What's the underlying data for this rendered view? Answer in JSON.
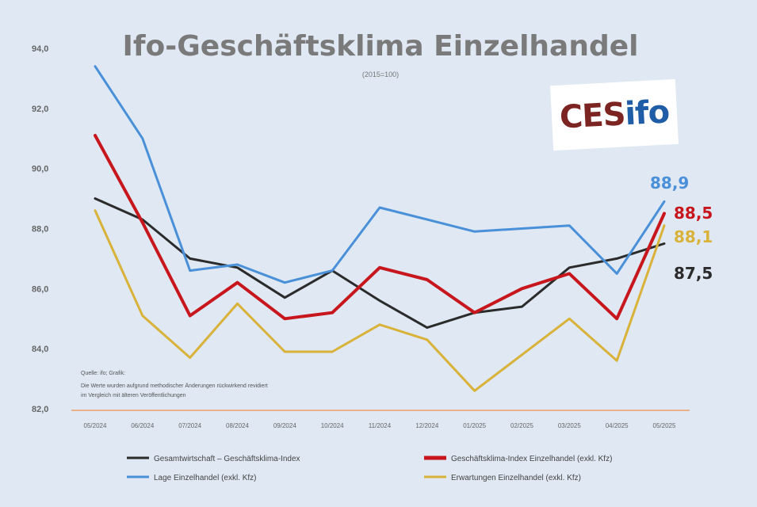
{
  "chart_data": {
    "type": "line",
    "title": "Ifo-Geschäftsklima Einzelhandel",
    "subtitle": "(2015=100)",
    "categories": [
      "05/2024",
      "06/2024",
      "07/2024",
      "08/2024",
      "09/2024",
      "10/2024",
      "11/2024",
      "12/2024",
      "01/2025",
      "02/2025",
      "03/2025",
      "04/2025",
      "05/2025"
    ],
    "yticks": [
      "94,0",
      "92,0",
      "90,0",
      "88,0",
      "86,0",
      "84,0",
      "82,0"
    ],
    "ylim": [
      82,
      94
    ],
    "series": [
      {
        "name": "Gesamtwirtschaft – Geschäftsklima-Index",
        "color": "#2b2b2b",
        "values": [
          89.0,
          88.3,
          87.0,
          86.7,
          85.7,
          86.6,
          85.6,
          84.7,
          85.2,
          85.4,
          86.7,
          87.0,
          87.5
        ],
        "end_label": "87,5"
      },
      {
        "name": "Geschäftsklima-Index Einzelhandel (exkl. Kfz)",
        "color": "#c8161d",
        "values": [
          91.1,
          88.2,
          85.1,
          86.2,
          85.0,
          85.2,
          86.7,
          86.3,
          85.2,
          86.0,
          86.5,
          85.0,
          88.5
        ],
        "end_label": "88,5"
      },
      {
        "name": "Lage Einzelhandel (exkl. Kfz)",
        "color": "#4a90d9",
        "values": [
          93.4,
          91.0,
          86.6,
          86.8,
          86.2,
          86.6,
          88.7,
          88.3,
          87.9,
          88.0,
          88.1,
          86.5,
          88.9
        ],
        "end_label": "88,9"
      },
      {
        "name": "Erwartungen Einzelhandel (exkl. Kfz)",
        "color": "#d9b23a",
        "values": [
          88.6,
          85.1,
          83.7,
          85.5,
          83.9,
          83.9,
          84.8,
          84.3,
          82.6,
          83.8,
          85.0,
          83.6,
          88.1
        ],
        "end_label": "88,1"
      }
    ],
    "legend_position": "bottom",
    "grid": false
  },
  "source": {
    "label": "Quelle: ifo; Grafik:",
    "lines": [
      "Die Werte wurden aufgrund methodischer Änderungen rückwirkend revidiert",
      "im Vergleich mit älteren Veröffentlichungen"
    ]
  },
  "logo": {
    "part1": "CES",
    "part2": "ifo"
  },
  "colors": {
    "background": "#dfe8f3",
    "baseline": "#e9b08a"
  }
}
